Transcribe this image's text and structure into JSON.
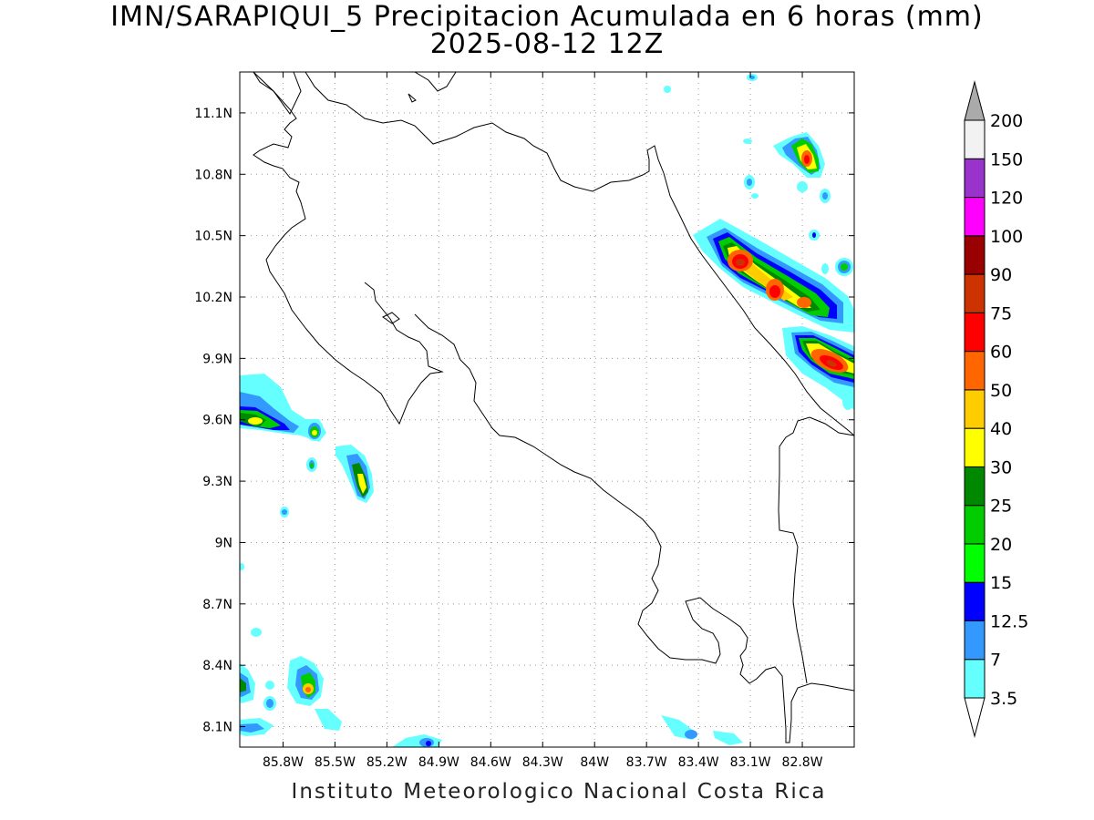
{
  "title": {
    "line1": "IMN/SARAPIQUI_5 Precipitacion Acumulada en 6 horas (mm)",
    "line2": "2025-08-12 12Z"
  },
  "footer": "Instituto Meteorologico Nacional Costa Rica",
  "map": {
    "lon_range": [
      -86.05,
      -82.5
    ],
    "lat_range": [
      8.0,
      11.3
    ],
    "lon_ticks": [
      "85.8W",
      "85.5W",
      "85.2W",
      "84.9W",
      "84.6W",
      "84.3W",
      "84W",
      "83.7W",
      "83.4W",
      "83.1W",
      "82.8W"
    ],
    "lat_ticks": [
      "11.1N",
      "10.8N",
      "10.5N",
      "10.2N",
      "9.9N",
      "9.6N",
      "9.3N",
      "9N",
      "8.7N",
      "8.4N",
      "8.1N"
    ],
    "grid": "dotted"
  },
  "legend": {
    "levels": [
      "3.5",
      "7",
      "12.5",
      "15",
      "20",
      "25",
      "30",
      "40",
      "50",
      "60",
      "75",
      "90",
      "100",
      "120",
      "150",
      "200"
    ],
    "colors": [
      "#66ffff",
      "#3399ff",
      "#0000ff",
      "#00ff00",
      "#00cc00",
      "#008800",
      "#ffff00",
      "#ffcc00",
      "#ff6600",
      "#ff0000",
      "#cc3300",
      "#990000",
      "#ff00ff",
      "#9933cc",
      "#f2f2f2",
      "#aaaaaa"
    ]
  }
}
